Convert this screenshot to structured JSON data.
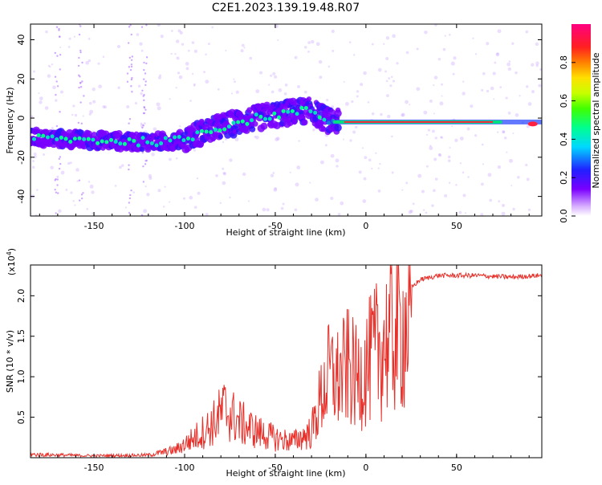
{
  "title": "C2E1.2023.139.19.48.R07",
  "colors": {
    "line": "#e8302a",
    "axis": "#000000",
    "spectrum_low": "#7a00ff",
    "spectrum_mid": "#00e0c0",
    "spectrum_high": "#ff2040"
  },
  "chart_data": [
    {
      "type": "heatmap",
      "name": "spectrogram",
      "xlabel": "Height of straight line (km)",
      "ylabel": "Frequency (Hz)",
      "xlim": [
        -185,
        97
      ],
      "ylim": [
        -50,
        48
      ],
      "xticks": [
        -150,
        -100,
        -50,
        0,
        50
      ],
      "xtick_labels": [
        "-150",
        "-100",
        "-50",
        "0",
        "50"
      ],
      "yticks": [
        -40,
        -20,
        0,
        20,
        40
      ],
      "ytick_labels": [
        "-40",
        "-20",
        "0",
        "20",
        "40"
      ],
      "ridge": {
        "x": [
          -185,
          -160,
          -130,
          -110,
          -100,
          -90,
          -70,
          -55,
          -40,
          -30,
          -22,
          -15,
          0,
          50,
          80,
          97
        ],
        "y": [
          -10,
          -11,
          -12,
          -12,
          -11,
          -7,
          -2,
          1,
          3,
          4,
          -1,
          -2,
          -2,
          -2,
          -3,
          -3
        ]
      },
      "colorbar": {
        "label": "Normalized spectral amplitude",
        "range": [
          0,
          1
        ],
        "ticks": [
          0.0,
          0.2,
          0.4,
          0.6,
          0.8
        ],
        "tick_labels": [
          "0.0",
          "0.2",
          "0.4",
          "0.6",
          "0.8"
        ]
      }
    },
    {
      "type": "line",
      "name": "snr",
      "xlabel": "Height of straight line (km)",
      "ylabel": "SNR (10 * v/v)",
      "y_multiplier": "(x10",
      "y_multiplier_exp": "4",
      "y_multiplier_close": ")",
      "xlim": [
        -185,
        97
      ],
      "ylim": [
        0,
        23800
      ],
      "xticks": [
        -150,
        -100,
        -50,
        0,
        50
      ],
      "xtick_labels": [
        "-150",
        "-100",
        "-50",
        "0",
        "50"
      ],
      "yticks": [
        5000,
        10000,
        15000,
        20000
      ],
      "ytick_labels": [
        "0.5",
        "1.0",
        "1.5",
        "2.0"
      ],
      "envelope": {
        "x": [
          -185,
          -150,
          -120,
          -105,
          -95,
          -85,
          -78,
          -70,
          -60,
          -50,
          -40,
          -30,
          -25,
          -20,
          -15,
          -10,
          -5,
          0,
          5,
          10,
          20,
          30,
          40,
          60,
          80,
          95
        ],
        "y": [
          500,
          300,
          400,
          1200,
          3000,
          5000,
          7500,
          5500,
          4000,
          3000,
          2500,
          4000,
          9000,
          13000,
          12000,
          14000,
          12000,
          14000,
          16000,
          18000,
          20000,
          22000,
          22500,
          22500,
          22300,
          22500
        ]
      }
    }
  ]
}
